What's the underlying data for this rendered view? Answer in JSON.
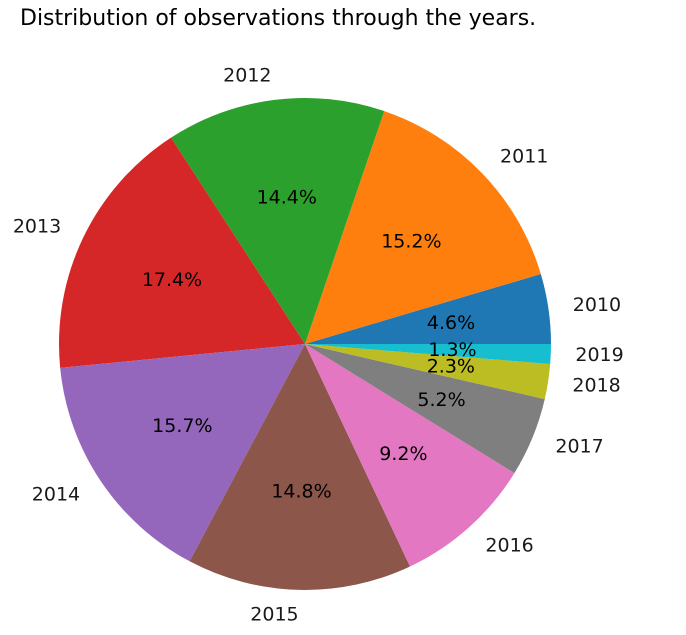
{
  "chart_data": {
    "type": "pie",
    "title": "Distribution of observations through the years.",
    "labels": [
      "2010",
      "2011",
      "2012",
      "2013",
      "2014",
      "2015",
      "2016",
      "2017",
      "2018",
      "2019"
    ],
    "values": [
      4.6,
      15.2,
      14.4,
      17.4,
      15.7,
      14.8,
      9.2,
      5.2,
      2.3,
      1.3
    ],
    "value_labels": [
      "4.6%",
      "15.2%",
      "14.4%",
      "17.4%",
      "15.7%",
      "14.8%",
      "9.2%",
      "5.2%",
      "2.3%",
      "1.3%"
    ],
    "colors": [
      "#1f77b4",
      "#ff7f0e",
      "#2ca02c",
      "#d62728",
      "#9467bd",
      "#8c564b",
      "#e377c2",
      "#7f7f7f",
      "#bcbd22",
      "#17becf"
    ],
    "start_angle": 0,
    "direction": "counterclockwise",
    "legend": "none"
  }
}
